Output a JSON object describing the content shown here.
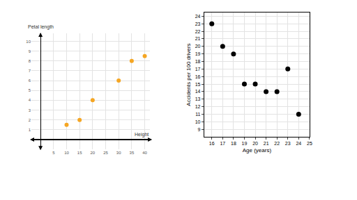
{
  "chart_data": [
    {
      "type": "scatter",
      "x_label": "Height",
      "y_label": "Petal length",
      "x": [
        10,
        15,
        20,
        30,
        35,
        40
      ],
      "values": [
        1.5,
        2,
        4,
        6,
        8,
        8.5
      ],
      "color": "#f5a623",
      "marker": "circle",
      "xlim": [
        -3.5,
        42
      ],
      "ylim": [
        -1,
        10.8
      ],
      "xticks": [
        5,
        10,
        15,
        20,
        25,
        30,
        35,
        40
      ],
      "yticks": [
        1,
        2,
        3,
        4,
        5,
        6,
        7,
        8,
        9,
        10
      ],
      "grid": true
    },
    {
      "type": "scatter",
      "x_label": "Age (years)",
      "y_label": "Accidents per 100 drivers",
      "x": [
        16,
        17,
        18,
        19,
        20,
        21,
        22,
        23,
        24
      ],
      "values": [
        23,
        20,
        19,
        15,
        15,
        14,
        14,
        17,
        11
      ],
      "color": "#000000",
      "marker": "circle",
      "xlim": [
        15.3,
        25
      ],
      "ylim": [
        8,
        24.5
      ],
      "xticks": [
        16,
        17,
        18,
        19,
        20,
        21,
        22,
        23,
        24,
        25
      ],
      "yticks": [
        9,
        10,
        11,
        12,
        13,
        14,
        15,
        16,
        17,
        18,
        19,
        20,
        21,
        22,
        23,
        24
      ],
      "grid": true
    }
  ]
}
